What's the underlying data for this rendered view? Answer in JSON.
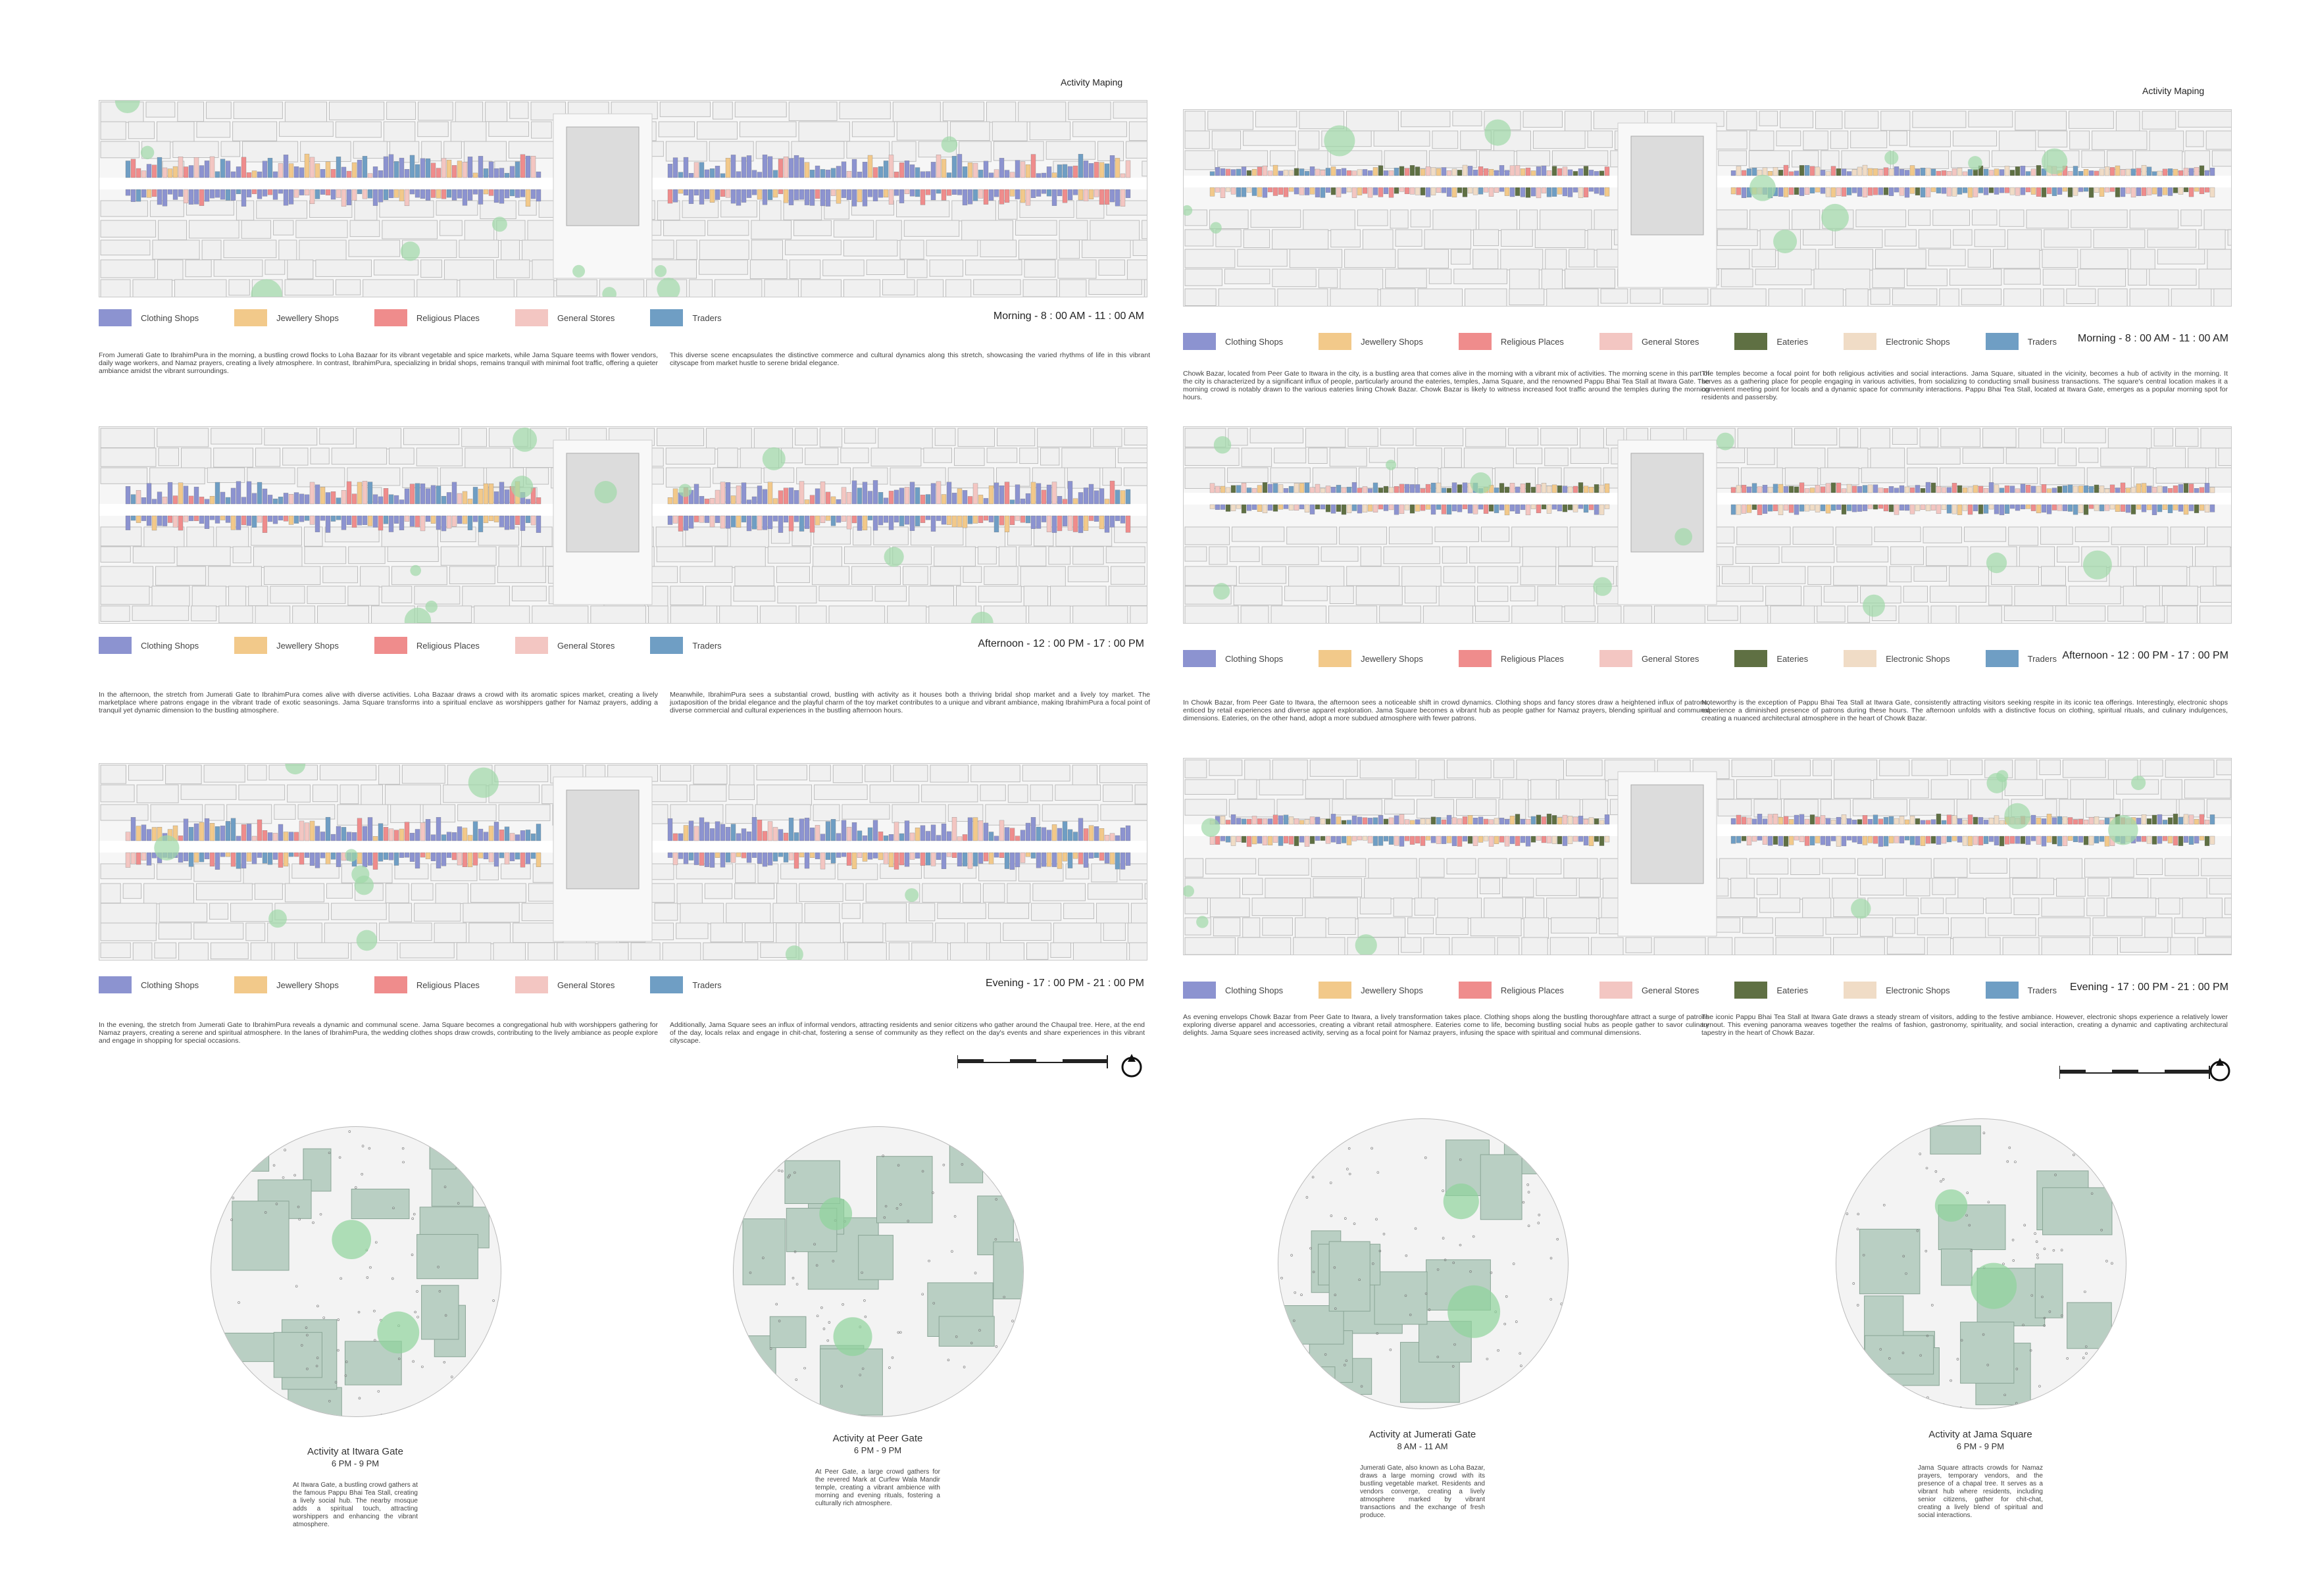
{
  "left_sheet": {
    "title": "Activity Maping",
    "legend": [
      {
        "label": "Clothing Shops",
        "color": "#8c93d0"
      },
      {
        "label": "Jewellery Shops",
        "color": "#f2c98a"
      },
      {
        "label": "Religious Places",
        "color": "#ef8c8c"
      },
      {
        "label": "General Stores",
        "color": "#f3c6c2"
      },
      {
        "label": "Traders",
        "color": "#6f9ec4"
      }
    ],
    "panels": [
      {
        "time": "Morning - 8 : 00 AM - 11 : 00 AM",
        "desc_left": "From Jumerati Gate to IbrahimPura in the morning, a bustling crowd flocks to Loha Bazaar for its vibrant vegetable and spice markets, while Jama Square teems with flower vendors, daily wage workers, and Namaz prayers, creating a lively atmosphere. In contrast, IbrahimPura, specializing in bridal shops, remains tranquil with minimal foot traffic, offering a quieter ambiance amidst the vibrant surroundings.",
        "desc_right": "This diverse scene encapsulates the distinctive commerce and cultural dynamics along this stretch, showcasing the varied rhythms of life in this vibrant cityscape from market hustle to serene bridal elegance."
      },
      {
        "time": "Afternoon - 12 : 00 PM - 17 : 00 PM",
        "desc_left": "In the afternoon, the stretch from Jumerati Gate to IbrahimPura comes alive with diverse activities. Loha Bazaar draws a crowd with its aromatic spices market, creating a lively marketplace where patrons engage in the vibrant trade of exotic seasonings. Jama Square transforms into a spiritual enclave as worshippers gather for Namaz prayers, adding a tranquil yet dynamic dimension to the bustling atmosphere.",
        "desc_right": "Meanwhile, IbrahimPura sees a substantial crowd, bustling with activity as it houses both a thriving bridal shop market and a lively toy market. The juxtaposition of the bridal elegance and the playful charm of the toy market contributes to a unique and vibrant ambiance, making IbrahimPura a focal point of diverse commercial and cultural experiences in the bustling afternoon hours."
      },
      {
        "time": "Evening - 17 : 00 PM - 21 : 00 PM",
        "desc_left": "In the evening, the stretch from Jumerati Gate to IbrahimPura reveals a dynamic and communal scene. Jama Square becomes a congregational hub with worshippers gathering for Namaz prayers, creating a serene and spiritual atmosphere. In the lanes of IbrahimPura, the wedding clothes shops draw crowds, contributing to the lively ambiance as people explore and engage in shopping for special occasions.",
        "desc_right": "Additionally, Jama Square sees an influx of informal vendors, attracting residents and senior citizens who gather around the Chaupal tree. Here, at the end of the day, locals relax and engage in chit-chat, fostering a sense of community as they reflect on the day's events and share experiences in this vibrant cityscape."
      }
    ]
  },
  "right_sheet": {
    "title": "Activity Maping",
    "legend": [
      {
        "label": "Clothing Shops",
        "color": "#8c93d0"
      },
      {
        "label": "Jewellery Shops",
        "color": "#f2c98a"
      },
      {
        "label": "Religious Places",
        "color": "#ef8c8c"
      },
      {
        "label": "General Stores",
        "color": "#f3c6c2"
      },
      {
        "label": "Eateries",
        "color": "#5f7043"
      },
      {
        "label": "Electronic Shops",
        "color": "#f0dcc6"
      },
      {
        "label": "Traders",
        "color": "#6f9ec4"
      }
    ],
    "panels": [
      {
        "time": "Morning - 8 : 00 AM - 11 : 00 AM",
        "desc_left": "Chowk Bazar, located from Peer Gate to Itwara in the city, is a bustling area that comes alive in the morning with a vibrant mix of activities. The morning scene in this part of the city is characterized by a significant influx of people, particularly around the eateries, temples, Jama Square, and the renowned Pappu Bhai Tea Stall at Itwara Gate. The morning crowd is notably drawn to the various eateries lining Chowk Bazar.  Chowk Bazar is likely to witness increased foot traffic around the temples during the morning hours.",
        "desc_right": "The temples become a focal point for both religious activities and social interactions. Jama Square, situated in the vicinity, becomes a hub of activity in the morning. It serves as a gathering place for people engaging in various activities, from socializing to conducting small business transactions. The square's central location makes it a convenient meeting point for locals and a dynamic space for community interactions. Pappu Bhai Tea Stall, located at Itwara Gate, emerges as a popular morning spot for residents and passersby."
      },
      {
        "time": "Afternoon - 12 : 00 PM - 17 : 00 PM",
        "desc_left": "In Chowk Bazar, from Peer Gate to Itwara, the afternoon sees a noticeable shift in crowd dynamics. Clothing shops and fancy stores draw a heightened influx of patrons, enticed by retail experiences and diverse apparel exploration. Jama Square becomes a vibrant hub as people gather for Namaz prayers, blending spiritual and communal dimensions. Eateries, on the other hand, adopt a more subdued atmosphere with fewer patrons.",
        "desc_right": "Noteworthy is the exception of Pappu Bhai Tea Stall at Itwara Gate, consistently attracting visitors seeking respite in its iconic tea offerings. Interestingly, electronic shops experience a diminished presence of patrons during these hours. The afternoon unfolds with a distinctive focus on clothing, spiritual rituals, and culinary indulgences, creating a nuanced architectural atmosphere in the heart of Chowk Bazar."
      },
      {
        "time": "Evening - 17 : 00 PM - 21 : 00 PM",
        "desc_left": "As evening envelops Chowk Bazar from Peer Gate to Itwara, a lively transformation takes place. Clothing shops along the bustling thoroughfare attract a surge of patrons exploring diverse apparel and accessories, creating a vibrant retail atmosphere. Eateries come to life, becoming bustling social hubs as people gather to savor culinary delights. Jama Square sees increased activity, serving as a focal point for Namaz prayers, infusing the space with spiritual and communal dimensions.",
        "desc_right": "The iconic Pappu Bhai Tea Stall at Itwara Gate draws a steady stream of visitors, adding to the festive ambiance. However, electronic shops experience a relatively lower turnout. This evening panorama weaves together the realms of fashion, gastronomy, spirituality, and social interaction, creating a dynamic and captivating architectural tapestry in the heart of Chowk Bazar."
      }
    ]
  },
  "circles": [
    {
      "title": "Activity at Itwara Gate",
      "time": "6 PM - 9 PM",
      "desc": "At Itwara Gate, a bustling crowd gathers at the famous Pappu Bhai Tea Stall, creating a lively social hub. The nearby mosque adds a spiritual touch, attracting worshippers and enhancing the vibrant atmosphere."
    },
    {
      "title": "Activity at Peer Gate",
      "time": "6 PM - 9 PM",
      "desc": "At Peer Gate, a large crowd gathers for the revered Mark at Curfew Wala Mandir temple, creating a vibrant ambience with morning and evening rituals, fostering a culturally rich atmosphere."
    },
    {
      "title": "Activity at Jumerati Gate",
      "time": "8 AM - 11 AM",
      "desc": "Jumerati Gate, also known as Loha Bazar, draws a large morning crowd with its bustling vegetable market. Residents and vendors converge, creating a lively atmosphere marked by vibrant transactions and the exchange of fresh produce."
    },
    {
      "title": "Activity at Jama Square",
      "time": "6 PM - 9 PM",
      "desc": "Jama Square attracts crowds for Namaz prayers, temporary vendors, and the presence of a chapal tree. It serves as a vibrant hub where residents, including senior citizens, gather for chit-chat, creating a lively blend of spiritual and social interactions."
    }
  ]
}
